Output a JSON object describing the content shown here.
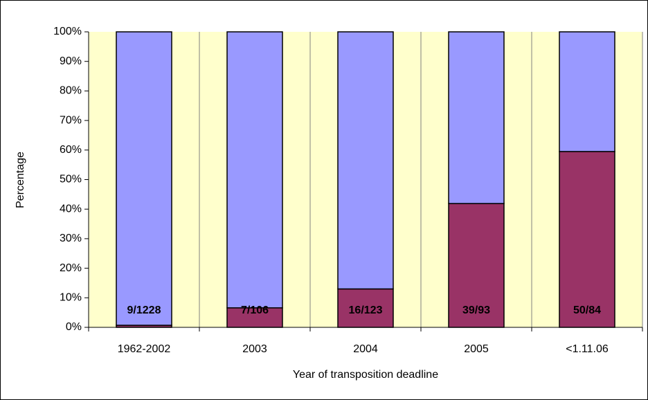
{
  "chart_data": {
    "type": "stacked_bar",
    "x_label": "Year of transposition deadline",
    "y_label": "Percentage",
    "categories": [
      "1962-2002",
      "2003",
      "2004",
      "2005",
      "<1.11.06"
    ],
    "series": [
      {
        "color": "#993366",
        "values": [
          0.7,
          6.6,
          13,
          41.9,
          59.5
        ]
      },
      {
        "color": "#9999ff",
        "values": [
          99.3,
          93.4,
          87,
          58.1,
          40.5
        ]
      }
    ],
    "bar_labels": [
      "9/1228",
      "7/106",
      "16/123",
      "39/93",
      "50/84"
    ],
    "ylim": [
      0,
      100
    ],
    "yticks": [
      {
        "value": 0,
        "label": "0%"
      },
      {
        "value": 10,
        "label": "10%"
      },
      {
        "value": 20,
        "label": "20%"
      },
      {
        "value": 30,
        "label": "30%"
      },
      {
        "value": 40,
        "label": "40%"
      },
      {
        "value": 50,
        "label": "50%"
      },
      {
        "value": 60,
        "label": "60%"
      },
      {
        "value": 70,
        "label": "70%"
      },
      {
        "value": 80,
        "label": "80%"
      },
      {
        "value": 90,
        "label": "90%"
      },
      {
        "value": 100,
        "label": "100%"
      }
    ],
    "plot_background": "#ffffcc"
  }
}
